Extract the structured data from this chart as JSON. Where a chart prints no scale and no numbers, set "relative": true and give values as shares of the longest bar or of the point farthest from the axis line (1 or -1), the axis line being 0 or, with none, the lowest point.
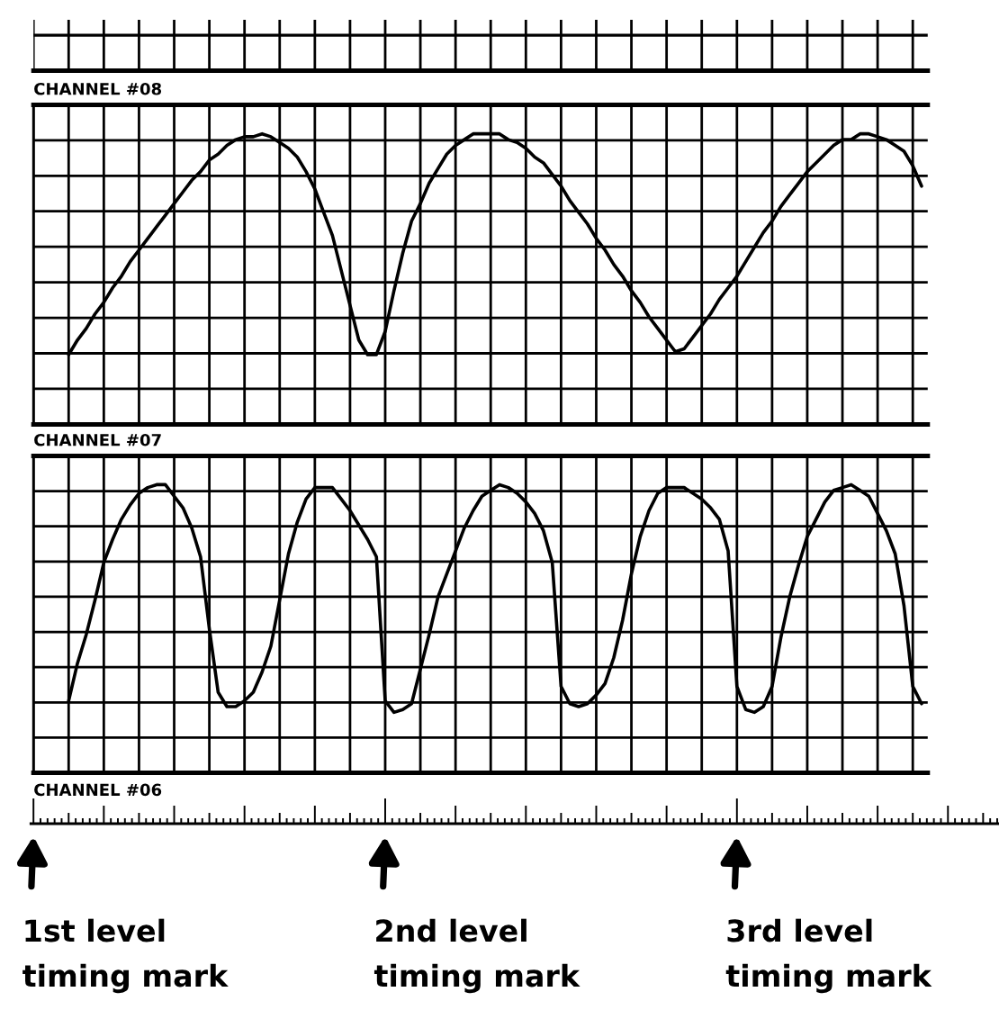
{
  "chart_data": [
    {
      "type": "line",
      "title": "CHANNEL #08",
      "relative": true,
      "grid": true,
      "color": "#000000",
      "categories": [
        null,
        null,
        null,
        null,
        null,
        null,
        null,
        null,
        null,
        null,
        null,
        null,
        null,
        null,
        null,
        null,
        null,
        null,
        null,
        null,
        null,
        null,
        null,
        null,
        null,
        null,
        null,
        null,
        null,
        null,
        null,
        null,
        null,
        null,
        null,
        null,
        null,
        null,
        null,
        null,
        null,
        null,
        null,
        null,
        null,
        null,
        null,
        null,
        null,
        null,
        null,
        null,
        null,
        null,
        null,
        null,
        null,
        null,
        null,
        null,
        null,
        null,
        null,
        null,
        null,
        null,
        null,
        null,
        null,
        null,
        null,
        null,
        null,
        null,
        null,
        null,
        null,
        null,
        null,
        null,
        null,
        null,
        null,
        null,
        null,
        null,
        null,
        null,
        null,
        null,
        null,
        null,
        null,
        null,
        null,
        null,
        null,
        null
      ],
      "values": [
        0.24,
        0.29,
        0.33,
        0.38,
        0.42,
        0.47,
        0.51,
        0.56,
        0.6,
        0.64,
        0.68,
        0.72,
        0.76,
        0.8,
        0.84,
        0.87,
        0.91,
        0.93,
        0.96,
        0.98,
        0.99,
        0.99,
        1.0,
        0.99,
        0.97,
        0.95,
        0.92,
        0.87,
        0.81,
        0.73,
        0.65,
        0.53,
        0.41,
        0.29,
        0.24,
        0.24,
        0.32,
        0.46,
        0.59,
        0.7,
        0.76,
        0.83,
        0.88,
        0.93,
        0.96,
        0.98,
        1.0,
        1.0,
        1.0,
        1.0,
        0.98,
        0.97,
        0.95,
        0.92,
        0.9,
        0.86,
        0.82,
        0.77,
        0.73,
        0.69,
        0.64,
        0.6,
        0.55,
        0.51,
        0.46,
        0.42,
        0.37,
        0.33,
        0.29,
        0.25,
        0.26,
        0.3,
        0.34,
        0.38,
        0.43,
        0.47,
        0.51,
        0.56,
        0.61,
        0.66,
        0.7,
        0.75,
        0.79,
        0.83,
        0.87,
        0.9,
        0.93,
        0.96,
        0.98,
        0.98,
        1.0,
        1.0,
        0.99,
        0.98,
        0.96,
        0.94,
        0.89,
        0.82
      ]
    },
    {
      "type": "line",
      "title": "CHANNEL #07",
      "relative": true,
      "grid": true,
      "color": "#000000",
      "categories": [
        null,
        null,
        null,
        null,
        null,
        null,
        null,
        null,
        null,
        null,
        null,
        null,
        null,
        null,
        null,
        null,
        null,
        null,
        null,
        null,
        null,
        null,
        null,
        null,
        null,
        null,
        null,
        null,
        null,
        null,
        null,
        null,
        null,
        null,
        null,
        null,
        null,
        null,
        null,
        null,
        null,
        null,
        null,
        null,
        null,
        null,
        null,
        null,
        null,
        null,
        null,
        null,
        null,
        null,
        null,
        null,
        null,
        null,
        null,
        null,
        null,
        null,
        null,
        null,
        null,
        null,
        null,
        null,
        null,
        null,
        null,
        null,
        null,
        null,
        null,
        null,
        null,
        null,
        null,
        null,
        null,
        null,
        null,
        null,
        null,
        null,
        null,
        null,
        null,
        null,
        null,
        null,
        null,
        null,
        null,
        null,
        null,
        null
      ],
      "values": [
        0.25,
        0.38,
        0.48,
        0.6,
        0.73,
        0.81,
        0.88,
        0.93,
        0.97,
        0.99,
        1.0,
        1.0,
        0.96,
        0.92,
        0.85,
        0.75,
        0.5,
        0.28,
        0.23,
        0.23,
        0.25,
        0.28,
        0.35,
        0.44,
        0.6,
        0.76,
        0.87,
        0.95,
        0.99,
        0.99,
        0.99,
        0.95,
        0.91,
        0.86,
        0.81,
        0.75,
        0.25,
        0.21,
        0.22,
        0.24,
        0.36,
        0.48,
        0.61,
        0.69,
        0.77,
        0.85,
        0.91,
        0.96,
        0.98,
        1.0,
        0.99,
        0.97,
        0.94,
        0.9,
        0.84,
        0.73,
        0.3,
        0.24,
        0.23,
        0.24,
        0.27,
        0.31,
        0.4,
        0.53,
        0.69,
        0.82,
        0.91,
        0.97,
        0.99,
        0.99,
        0.99,
        0.97,
        0.95,
        0.92,
        0.88,
        0.77,
        0.3,
        0.22,
        0.21,
        0.23,
        0.3,
        0.47,
        0.61,
        0.72,
        0.82,
        0.88,
        0.94,
        0.98,
        0.99,
        1.0,
        0.98,
        0.96,
        0.9,
        0.84,
        0.76,
        0.58,
        0.3,
        0.24
      ]
    },
    {
      "type": "other",
      "title": "CHANNEL #06",
      "annotations": [
        "1st level\ntiming mark",
        "2nd level\ntiming mark",
        "3rd level\ntiming mark"
      ]
    }
  ]
}
